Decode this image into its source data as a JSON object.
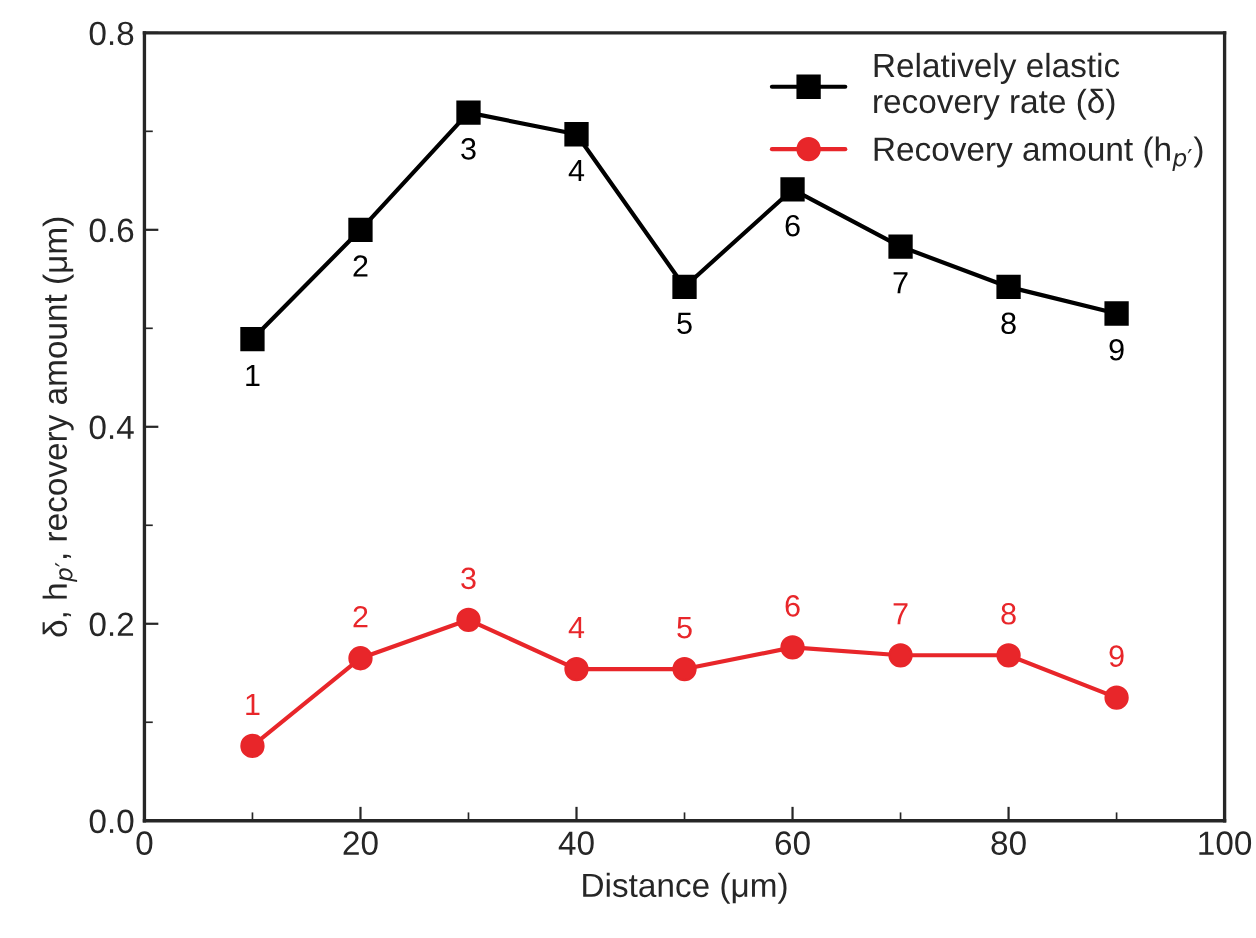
{
  "chart_data": {
    "type": "line",
    "xlabel": "Distance (μm)",
    "ylabel": "δ, h$_{p′}$, recovery amount (μm)",
    "x": [
      10,
      20,
      30,
      40,
      50,
      60,
      70,
      80,
      90
    ],
    "series": [
      {
        "name": "Relatively elastic\nrecovery rate (δ)",
        "color": "#000000",
        "marker": "square",
        "values": [
          0.489,
          0.6,
          0.719,
          0.697,
          0.542,
          0.641,
          0.583,
          0.542,
          0.515
        ]
      },
      {
        "name": "Recovery amount (h$_{p′}$)",
        "color": "#e8262a",
        "marker": "circle",
        "values": [
          0.076,
          0.165,
          0.204,
          0.154,
          0.154,
          0.176,
          0.168,
          0.168,
          0.125
        ]
      }
    ],
    "annotations": [
      {
        "text": "1",
        "x": 10,
        "y": 0.489
      },
      {
        "text": "2",
        "x": 20,
        "y": 0.6
      },
      {
        "text": "3",
        "x": 30,
        "y": 0.719
      },
      {
        "text": "4",
        "x": 40,
        "y": 0.697
      },
      {
        "text": "5",
        "x": 50,
        "y": 0.542
      },
      {
        "text": "6",
        "x": 60,
        "y": 0.641
      },
      {
        "text": "7",
        "x": 70,
        "y": 0.583
      },
      {
        "text": "8",
        "x": 80,
        "y": 0.542
      },
      {
        "text": "9",
        "x": 90,
        "y": 0.515
      },
      {
        "text": "1",
        "x": 10,
        "y": 0.076
      },
      {
        "text": "2",
        "x": 20,
        "y": 0.165
      },
      {
        "text": "3",
        "x": 30,
        "y": 0.204
      },
      {
        "text": "4",
        "x": 40,
        "y": 0.154
      },
      {
        "text": "5",
        "x": 50,
        "y": 0.154
      },
      {
        "text": "6",
        "x": 60,
        "y": 0.176
      },
      {
        "text": "7",
        "x": 70,
        "y": 0.168
      },
      {
        "text": "8",
        "x": 80,
        "y": 0.168
      },
      {
        "text": "9",
        "x": 90,
        "y": 0.125
      }
    ],
    "xlim": [
      0,
      100
    ],
    "xticks": [
      0,
      20,
      40,
      60,
      80,
      100
    ],
    "ylim": [
      0,
      0.8
    ],
    "yticks": [
      {
        "value": 0,
        "label": "0.0"
      },
      {
        "value": 0.2,
        "label": "0.2"
      },
      {
        "value": 0.4,
        "label": "0.4"
      },
      {
        "value": 0.6,
        "label": "0.6"
      },
      {
        "value": 0.8,
        "label": "0.8"
      }
    ],
    "grid": false,
    "legend": "top right",
    "line_style": "solid"
  }
}
